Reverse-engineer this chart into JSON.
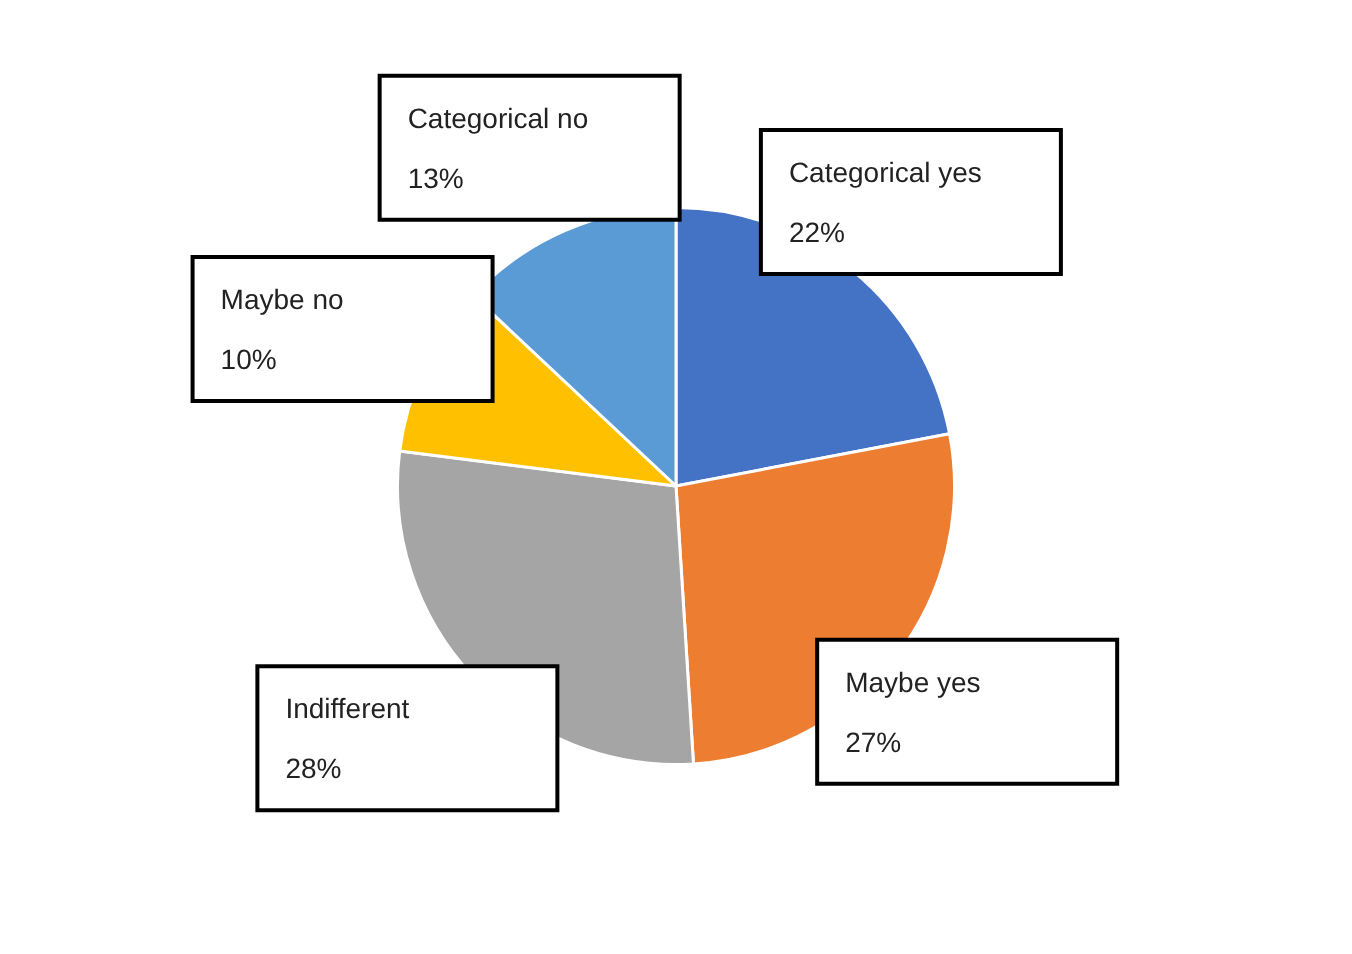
{
  "chart_data": {
    "type": "pie",
    "categories": [
      "Categorical yes",
      "Maybe yes",
      "Indifferent",
      "Maybe no",
      "Categorical no"
    ],
    "values": [
      22,
      27,
      28,
      10,
      13
    ],
    "colors": [
      "#4472c4",
      "#ed7d31",
      "#a5a5a5",
      "#ffc000",
      "#5b9bd5"
    ],
    "value_labels": [
      "22%",
      "27%",
      "28%",
      "10%",
      "13%"
    ],
    "legend": false
  }
}
